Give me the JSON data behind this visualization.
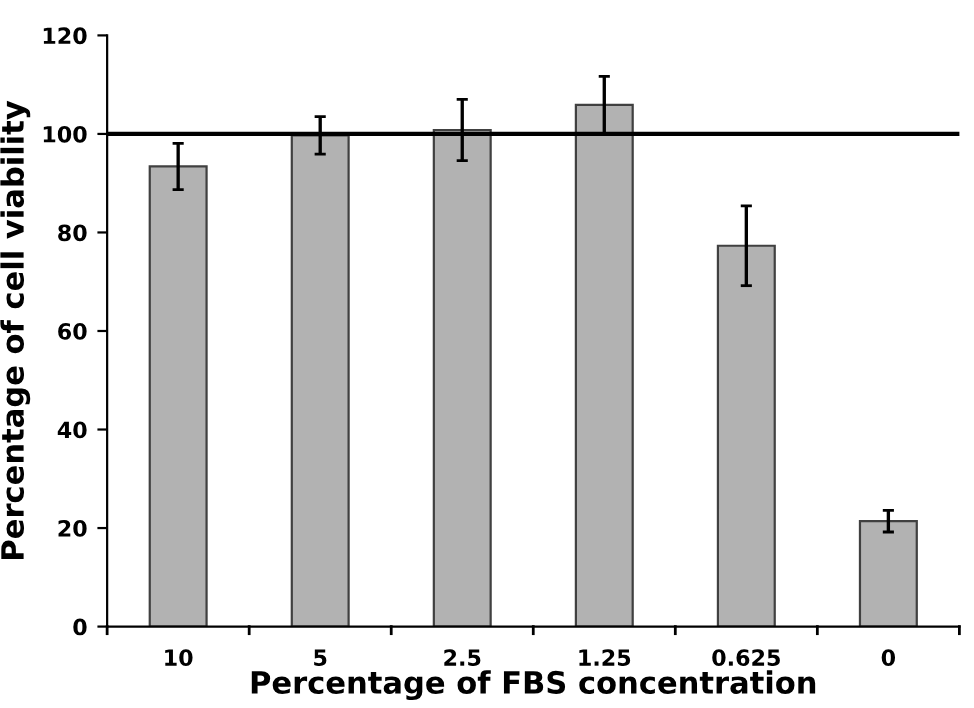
{
  "chart_data": {
    "type": "bar",
    "xlabel": "Percentage of FBS concentration",
    "ylabel": "Percentage of cell viability",
    "categories": [
      "10",
      "5",
      "2.5",
      "1.25",
      "0.625",
      "0"
    ],
    "values": [
      93.4,
      99.7,
      100.8,
      105.9,
      77.3,
      21.4
    ],
    "errors": [
      4.7,
      3.8,
      6.2,
      5.8,
      8.1,
      2.2
    ],
    "color": "#b2b2b2",
    "ylim": [
      0,
      120
    ],
    "yticks": [
      0,
      20,
      40,
      60,
      80,
      100,
      120
    ],
    "grid": false,
    "legend": false,
    "ref_lines": [
      {
        "axis": "y",
        "value": 100,
        "color": "#000000",
        "line_style": "solid"
      }
    ]
  }
}
